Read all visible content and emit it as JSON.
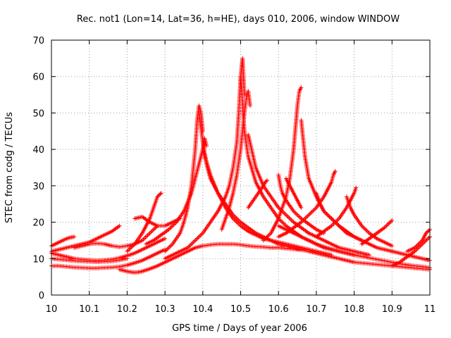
{
  "chart_data": {
    "type": "scatter",
    "title": "Rec. not1 (Lon=14, Lat=36, h=HE), days 010, 2006, window WINDOW",
    "xlabel": "GPS time / Days of year 2006",
    "ylabel": "STEC from codg / TECUs",
    "xlim": [
      10,
      11
    ],
    "ylim": [
      0,
      70
    ],
    "x_ticks": [
      "10",
      "10.1",
      "10.2",
      "10.3",
      "10.4",
      "10.5",
      "10.6",
      "10.7",
      "10.8",
      "10.9",
      "11"
    ],
    "y_ticks": [
      "0",
      "10",
      "20",
      "30",
      "40",
      "50",
      "60",
      "70"
    ],
    "grid": true,
    "marker": "+",
    "color": "#ff0000",
    "series": [
      {
        "x": [
          10.0,
          10.02,
          10.04,
          10.06,
          10.08,
          10.1,
          10.12,
          10.14,
          10.16,
          10.18,
          10.2,
          10.22,
          10.24,
          10.26,
          10.28,
          10.3
        ],
        "y": [
          8,
          8,
          7.8,
          7.6,
          7.5,
          7.4,
          7.4,
          7.5,
          7.6,
          7.8,
          8.2,
          8.8,
          9.5,
          10.5,
          11.5,
          12.5
        ]
      },
      {
        "x": [
          10.0,
          10.02,
          10.04,
          10.06,
          10.08,
          10.1,
          10.12,
          10.14,
          10.16,
          10.18,
          10.2
        ],
        "y": [
          10,
          9.8,
          9.6,
          9.4,
          9.3,
          9.2,
          9.1,
          9.2,
          9.3,
          9.6,
          10
        ]
      },
      {
        "x": [
          10.0,
          10.02,
          10.04,
          10.06,
          10.08,
          10.1,
          10.12,
          10.14,
          10.16,
          10.18,
          10.2,
          10.22,
          10.24,
          10.26,
          10.28,
          10.3
        ],
        "y": [
          11.5,
          11,
          10.5,
          10,
          9.8,
          9.6,
          9.5,
          9.6,
          9.8,
          10.2,
          10.8,
          11.5,
          12.5,
          13.5,
          14.5,
          15.5
        ]
      },
      {
        "x": [
          10.0,
          10.01,
          10.02,
          10.03,
          10.04,
          10.05,
          10.06
        ],
        "y": [
          13.5,
          14,
          14.5,
          15,
          15.5,
          15.8,
          16
        ]
      },
      {
        "x": [
          10.0,
          10.02,
          10.04,
          10.06,
          10.08,
          10.1,
          10.12,
          10.14,
          10.16,
          10.18
        ],
        "y": [
          12,
          12.5,
          13,
          13.5,
          14,
          14.5,
          15.5,
          16.5,
          17.5,
          19
        ]
      },
      {
        "x": [
          10.06,
          10.08,
          10.1,
          10.12,
          10.14,
          10.16,
          10.18,
          10.2,
          10.22,
          10.24,
          10.26,
          10.28
        ],
        "y": [
          13,
          13.5,
          14,
          14.2,
          14,
          13.5,
          13.2,
          13.5,
          14,
          15,
          17,
          19
        ]
      },
      {
        "x": [
          10.18,
          10.2,
          10.21,
          10.22,
          10.23,
          10.24,
          10.26,
          10.28,
          10.3,
          10.32,
          10.34,
          10.36,
          10.38,
          10.4,
          10.42,
          10.44,
          10.46,
          10.48,
          10.5,
          10.52,
          10.54,
          10.56,
          10.58,
          10.6,
          10.62,
          10.64,
          10.66,
          10.68,
          10.7,
          10.72,
          10.74,
          10.76,
          10.78,
          10.8,
          10.82,
          10.84,
          10.86,
          10.88,
          10.9,
          10.92,
          10.94,
          10.96,
          10.98,
          11.0
        ],
        "y": [
          7,
          6.5,
          6.3,
          6.2,
          6.3,
          6.5,
          7.2,
          8,
          9,
          10,
          11,
          12,
          13,
          13.5,
          13.8,
          14,
          14,
          14,
          13.8,
          13.5,
          13.3,
          13.2,
          13,
          13,
          12.8,
          12.6,
          12.4,
          12,
          11.5,
          11,
          10.5,
          10,
          9.5,
          9,
          8.8,
          8.6,
          8.4,
          8.2,
          8,
          7.8,
          7.6,
          7.4,
          7.2,
          7
        ]
      },
      {
        "x": [
          10.3,
          10.32,
          10.34,
          10.35,
          10.36,
          10.37,
          10.38,
          10.385,
          10.39,
          10.395,
          10.4
        ],
        "y": [
          12,
          14,
          17,
          20,
          24,
          30,
          40,
          48,
          52,
          50,
          45
        ]
      },
      {
        "x": [
          10.39,
          10.4,
          10.41,
          10.42,
          10.44,
          10.46,
          10.48,
          10.5,
          10.52,
          10.54,
          10.56,
          10.58,
          10.6,
          10.62,
          10.64,
          10.66
        ],
        "y": [
          50,
          42,
          36,
          32,
          28,
          25,
          22,
          20,
          18.5,
          17,
          16,
          15,
          14,
          13.5,
          13,
          12.5
        ]
      },
      {
        "x": [
          10.25,
          10.27,
          10.29,
          10.31,
          10.33,
          10.35,
          10.37,
          10.39,
          10.4,
          10.405,
          10.41
        ],
        "y": [
          14,
          15,
          16.5,
          18,
          20,
          23,
          28,
          36,
          40,
          43,
          41
        ]
      },
      {
        "x": [
          10.4,
          10.42,
          10.44,
          10.46,
          10.48,
          10.5,
          10.52,
          10.54,
          10.56,
          10.58,
          10.6,
          10.62,
          10.64,
          10.66,
          10.68,
          10.7,
          10.72,
          10.74
        ],
        "y": [
          40,
          33,
          28,
          24,
          21,
          19,
          17.5,
          16.5,
          15.5,
          15,
          14.5,
          14,
          13.5,
          13,
          12.5,
          12,
          11.5,
          11
        ]
      },
      {
        "x": [
          10.3,
          10.32,
          10.34,
          10.36,
          10.38,
          10.4,
          10.42,
          10.44,
          10.46,
          10.47,
          10.48,
          10.49,
          10.495,
          10.5,
          10.505,
          10.51
        ],
        "y": [
          10,
          11,
          12,
          13,
          15,
          17,
          20,
          23,
          27,
          30,
          35,
          42,
          50,
          60,
          65,
          55
        ]
      },
      {
        "x": [
          10.5,
          10.51,
          10.52,
          10.54,
          10.56,
          10.58,
          10.6,
          10.62,
          10.64,
          10.66,
          10.68,
          10.7,
          10.72,
          10.74,
          10.76,
          10.78,
          10.8
        ],
        "y": [
          60,
          45,
          38,
          31,
          27,
          24,
          21,
          19,
          17.5,
          16,
          15,
          14,
          13,
          12.5,
          12,
          11.5,
          11
        ]
      },
      {
        "x": [
          10.45,
          10.46,
          10.47,
          10.48,
          10.49,
          10.5,
          10.505,
          10.51,
          10.515,
          10.52,
          10.525
        ],
        "y": [
          18,
          21,
          24,
          28,
          33,
          40,
          45,
          50,
          54,
          56,
          52
        ]
      },
      {
        "x": [
          10.52,
          10.54,
          10.56,
          10.58,
          10.6,
          10.62,
          10.64,
          10.66,
          10.68,
          10.7,
          10.72,
          10.74,
          10.76,
          10.78,
          10.8,
          10.82,
          10.84
        ],
        "y": [
          44,
          35,
          30,
          27,
          24,
          22,
          20,
          18.5,
          17,
          16,
          15,
          14,
          13,
          12.5,
          12,
          11.5,
          11
        ]
      },
      {
        "x": [
          10.56,
          10.58,
          10.6,
          10.62,
          10.63,
          10.64,
          10.645,
          10.65,
          10.655,
          10.66
        ],
        "y": [
          15,
          17,
          21,
          27,
          32,
          40,
          46,
          52,
          56,
          57
        ]
      },
      {
        "x": [
          10.66,
          10.67,
          10.68,
          10.7,
          10.72,
          10.74,
          10.76,
          10.78,
          10.8,
          10.82,
          10.84,
          10.86,
          10.88,
          10.9
        ],
        "y": [
          48,
          38,
          32,
          27,
          23,
          21,
          19,
          17,
          16,
          15,
          14,
          13,
          12.5,
          12
        ]
      },
      {
        "x": [
          10.6,
          10.62,
          10.64,
          10.66,
          10.68,
          10.7,
          10.72,
          10.74,
          10.745,
          10.75
        ],
        "y": [
          16,
          17,
          18.5,
          20,
          22,
          24,
          27,
          31,
          33,
          34
        ]
      },
      {
        "x": [
          10.6,
          10.605,
          10.61,
          10.62,
          10.64,
          10.66,
          10.68,
          10.7,
          10.72
        ],
        "y": [
          33,
          30,
          28,
          26,
          23,
          21,
          19.5,
          18,
          17
        ]
      },
      {
        "x": [
          10.52,
          10.54,
          10.56,
          10.565,
          10.57
        ],
        "y": [
          24,
          27,
          30,
          31,
          31.5
        ]
      },
      {
        "x": [
          10.62,
          10.63,
          10.64,
          10.65,
          10.66
        ],
        "y": [
          32,
          30,
          28,
          26,
          24
        ]
      },
      {
        "x": [
          10.7,
          10.71,
          10.72,
          10.74,
          10.76,
          10.78,
          10.8,
          10.82
        ],
        "y": [
          28,
          25,
          23,
          21,
          19,
          17.5,
          16,
          15
        ]
      },
      {
        "x": [
          10.7,
          10.72,
          10.74,
          10.76,
          10.78,
          10.8,
          10.805
        ],
        "y": [
          16,
          17.5,
          19,
          21,
          24,
          28,
          29.5
        ]
      },
      {
        "x": [
          10.78,
          10.79,
          10.8,
          10.82,
          10.84,
          10.86,
          10.88,
          10.9
        ],
        "y": [
          27,
          24,
          22,
          19,
          17,
          15.5,
          14.5,
          13.5
        ]
      },
      {
        "x": [
          10.82,
          10.84,
          10.86,
          10.88,
          10.9
        ],
        "y": [
          14,
          15.5,
          17,
          18.5,
          20.5
        ]
      },
      {
        "x": [
          10.6,
          10.62,
          10.64,
          10.66,
          10.68,
          10.7,
          10.72,
          10.74,
          10.76,
          10.78,
          10.8,
          10.82,
          10.84,
          10.86,
          10.88,
          10.9,
          10.92,
          10.94,
          10.96,
          10.98,
          11.0
        ],
        "y": [
          19,
          18,
          17,
          16,
          15,
          14,
          13.2,
          12.6,
          12,
          11.5,
          11,
          10.6,
          10.2,
          9.8,
          9.4,
          9,
          8.6,
          8.3,
          8,
          7.8,
          7.5
        ]
      },
      {
        "x": [
          10.9,
          10.92,
          10.94,
          10.96,
          10.98,
          11.0
        ],
        "y": [
          8,
          9,
          10.5,
          12,
          14,
          16
        ]
      },
      {
        "x": [
          10.94,
          10.96,
          10.98,
          10.99,
          11.0
        ],
        "y": [
          12,
          13,
          15,
          17,
          18
        ]
      },
      {
        "x": [
          10.9,
          10.92,
          10.94,
          10.96,
          10.98,
          11.0
        ],
        "y": [
          12,
          11.5,
          11,
          10.5,
          10,
          9.5
        ]
      },
      {
        "x": [
          10.2,
          10.22,
          10.24,
          10.26,
          10.27,
          10.28,
          10.29
        ],
        "y": [
          12,
          14,
          17,
          21,
          24,
          27,
          28
        ]
      },
      {
        "x": [
          10.22,
          10.24,
          10.26,
          10.28,
          10.3,
          10.32,
          10.34
        ],
        "y": [
          21,
          21.5,
          20,
          19,
          19,
          20,
          21
        ]
      }
    ]
  }
}
